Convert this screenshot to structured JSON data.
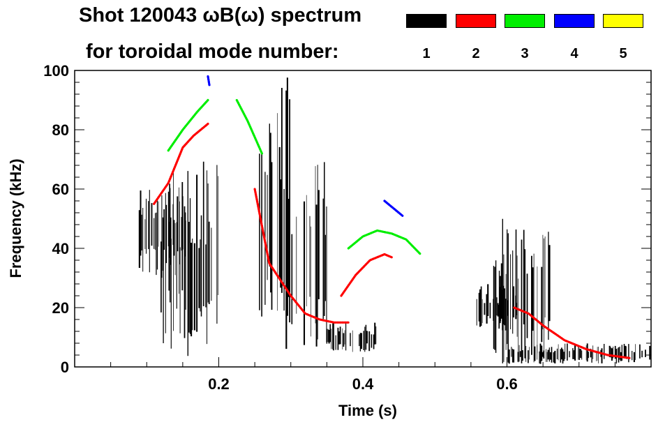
{
  "chart_data": {
    "type": "spectrogram",
    "title_line1": "Shot 120043 ωB(ω) spectrum",
    "title_line2": "for toroidal mode number:",
    "xlabel": "Time (s)",
    "ylabel": "Frequency (kHz)",
    "xlim": [
      0.0,
      0.8
    ],
    "ylim": [
      0,
      100
    ],
    "x_ticks": [
      0.2,
      0.4,
      0.6
    ],
    "x_tick_labels": [
      "0.2",
      "0.4",
      "0.6"
    ],
    "y_ticks": [
      0,
      20,
      40,
      60,
      80,
      100
    ],
    "y_tick_labels": [
      "0",
      "20",
      "40",
      "60",
      "80",
      "100"
    ],
    "legend": [
      {
        "label": "1",
        "color": "#000000"
      },
      {
        "label": "2",
        "color": "#ff0000"
      },
      {
        "label": "3",
        "color": "#00ee00"
      },
      {
        "label": "4",
        "color": "#0000ff"
      },
      {
        "label": "5",
        "color": "#ffff00"
      }
    ],
    "mode_regions": [
      {
        "mode": "1",
        "t0": 0.09,
        "t1": 0.155,
        "f0": 30,
        "f1": 62
      },
      {
        "mode": "1",
        "t0": 0.12,
        "t1": 0.2,
        "f0": 3,
        "f1": 70
      },
      {
        "mode": "1",
        "t0": 0.255,
        "t1": 0.3,
        "f0": 2,
        "f1": 100
      },
      {
        "mode": "1",
        "t0": 0.3,
        "t1": 0.35,
        "f0": 5,
        "f1": 70
      },
      {
        "mode": "1",
        "t0": 0.35,
        "t1": 0.42,
        "f0": 5,
        "f1": 15
      },
      {
        "mode": "1",
        "t0": 0.555,
        "t1": 0.62,
        "f0": 12,
        "f1": 28
      },
      {
        "mode": "1",
        "t0": 0.58,
        "t1": 0.66,
        "f0": 1,
        "f1": 50
      },
      {
        "mode": "1",
        "t0": 0.6,
        "t1": 0.8,
        "f0": 1,
        "f1": 8
      }
    ],
    "mode_tracks": [
      {
        "mode": "2",
        "name": "n2-early",
        "t": [
          0.11,
          0.13,
          0.15,
          0.165,
          0.175,
          0.185
        ],
        "f": [
          55,
          62,
          74,
          78,
          80,
          82
        ]
      },
      {
        "mode": "2",
        "name": "n2-chirp",
        "t": [
          0.25,
          0.27,
          0.3,
          0.32,
          0.34,
          0.36,
          0.38
        ],
        "f": [
          60,
          35,
          24,
          18,
          16,
          15,
          15
        ]
      },
      {
        "mode": "2",
        "name": "n2-rise",
        "t": [
          0.37,
          0.39,
          0.41,
          0.43,
          0.44
        ],
        "f": [
          24,
          31,
          36,
          38,
          37
        ]
      },
      {
        "mode": "2",
        "name": "n2-late",
        "t": [
          0.61,
          0.63,
          0.65,
          0.68,
          0.71,
          0.74,
          0.77
        ],
        "f": [
          20,
          18,
          14,
          9,
          6,
          4,
          3
        ]
      },
      {
        "mode": "3",
        "name": "n3-early",
        "t": [
          0.13,
          0.15,
          0.17,
          0.185
        ],
        "f": [
          73,
          80,
          86,
          90
        ]
      },
      {
        "mode": "3",
        "name": "n3-chirp",
        "t": [
          0.225,
          0.24,
          0.26
        ],
        "f": [
          90,
          83,
          72
        ]
      },
      {
        "mode": "3",
        "name": "n3-arc",
        "t": [
          0.38,
          0.4,
          0.42,
          0.44,
          0.46,
          0.48
        ],
        "f": [
          40,
          44,
          46,
          45,
          43,
          38
        ]
      },
      {
        "mode": "4",
        "name": "n4-mid",
        "t": [
          0.43,
          0.44,
          0.455
        ],
        "f": [
          56,
          54,
          51
        ]
      },
      {
        "mode": "4",
        "name": "n4-top",
        "t": [
          0.185,
          0.187
        ],
        "f": [
          98,
          95
        ]
      }
    ]
  }
}
